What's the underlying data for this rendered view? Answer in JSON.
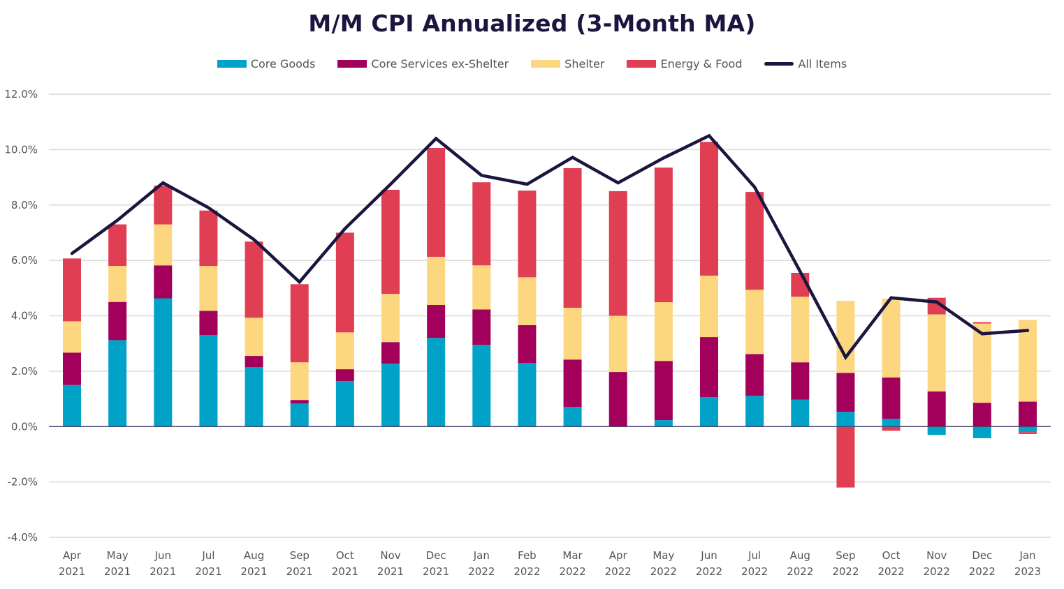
{
  "chart_data": {
    "type": "bar",
    "stacked": true,
    "title": "M/M CPI Annualized (3-Month MA)",
    "xlabel": "",
    "ylabel": "",
    "ylim": [
      -4.0,
      12.0
    ],
    "yticks": [
      -4.0,
      -2.0,
      0.0,
      2.0,
      4.0,
      6.0,
      8.0,
      10.0,
      12.0
    ],
    "ytick_labels": [
      "-4.0%",
      "-2.0%",
      "0.0%",
      "2.0%",
      "4.0%",
      "6.0%",
      "8.0%",
      "10.0%",
      "12.0%"
    ],
    "grid": true,
    "legend_position": "top-center",
    "categories": [
      [
        "Apr",
        "2021"
      ],
      [
        "May",
        "2021"
      ],
      [
        "Jun",
        "2021"
      ],
      [
        "Jul",
        "2021"
      ],
      [
        "Aug",
        "2021"
      ],
      [
        "Sep",
        "2021"
      ],
      [
        "Oct",
        "2021"
      ],
      [
        "Nov",
        "2021"
      ],
      [
        "Dec",
        "2021"
      ],
      [
        "Jan",
        "2022"
      ],
      [
        "Feb",
        "2022"
      ],
      [
        "Mar",
        "2022"
      ],
      [
        "Apr",
        "2022"
      ],
      [
        "May",
        "2022"
      ],
      [
        "Jun",
        "2022"
      ],
      [
        "Jul",
        "2022"
      ],
      [
        "Aug",
        "2022"
      ],
      [
        "Sep",
        "2022"
      ],
      [
        "Oct",
        "2022"
      ],
      [
        "Nov",
        "2022"
      ],
      [
        "Dec",
        "2022"
      ],
      [
        "Jan",
        "2023"
      ]
    ],
    "series": [
      {
        "name": "Core Goods",
        "kind": "bar",
        "color": "#00a3c7",
        "values": [
          1.5,
          3.12,
          4.63,
          3.3,
          2.14,
          0.83,
          1.64,
          2.27,
          3.2,
          2.95,
          2.29,
          0.71,
          0.0,
          0.23,
          1.06,
          1.11,
          0.97,
          0.53,
          0.28,
          -0.3,
          -0.42,
          -0.2
        ]
      },
      {
        "name": "Core Services ex-Shelter",
        "kind": "bar",
        "color": "#a3005c",
        "values": [
          1.17,
          1.38,
          1.19,
          0.88,
          0.41,
          0.13,
          0.43,
          0.78,
          1.19,
          1.28,
          1.37,
          1.71,
          1.97,
          2.14,
          2.17,
          1.51,
          1.35,
          1.41,
          1.49,
          1.27,
          0.86,
          0.9
        ]
      },
      {
        "name": "Shelter",
        "kind": "bar",
        "color": "#fcd77f",
        "values": [
          1.13,
          1.3,
          1.48,
          1.62,
          1.38,
          1.36,
          1.33,
          1.74,
          1.74,
          1.59,
          1.73,
          1.87,
          2.03,
          2.12,
          2.22,
          2.32,
          2.37,
          2.6,
          2.85,
          2.78,
          2.86,
          2.95
        ]
      },
      {
        "name": "Energy & Food",
        "kind": "bar",
        "color": "#e03e52",
        "values": [
          2.27,
          1.5,
          1.4,
          2.0,
          2.75,
          2.82,
          3.6,
          3.76,
          3.93,
          3.0,
          3.13,
          5.04,
          4.5,
          4.86,
          4.83,
          3.53,
          0.86,
          -2.2,
          -0.15,
          0.6,
          0.05,
          -0.07
        ]
      },
      {
        "name": "All Items",
        "kind": "line",
        "color": "#1b1540",
        "values": [
          6.25,
          7.45,
          8.8,
          7.9,
          6.75,
          5.22,
          7.15,
          8.75,
          10.4,
          9.07,
          8.75,
          9.72,
          8.8,
          9.7,
          10.5,
          8.65,
          5.6,
          2.5,
          4.65,
          4.5,
          3.35,
          3.47
        ]
      }
    ]
  }
}
